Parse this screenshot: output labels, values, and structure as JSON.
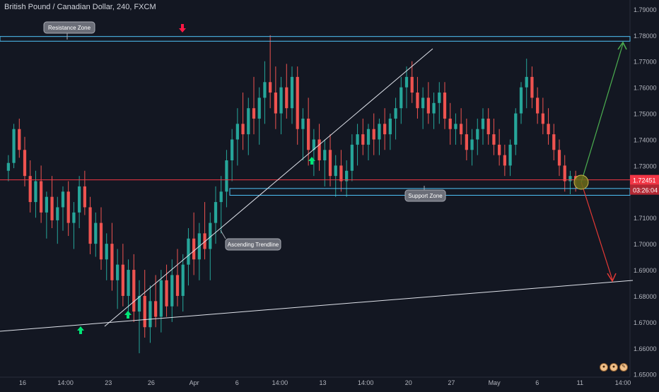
{
  "chart_data": {
    "type": "candlestick",
    "title": "British Pound / Canadian Dollar, 240, FXCM",
    "price_axis": {
      "ylim": [
        1.6445,
        1.7935
      ],
      "ticks": [
        "1.79000",
        "1.78000",
        "1.77000",
        "1.76000",
        "1.75000",
        "1.74000",
        "1.73000",
        "1.72000",
        "1.71000",
        "1.70000",
        "1.69000",
        "1.68000",
        "1.67000",
        "1.66000",
        "1.65000"
      ]
    },
    "time_axis": {
      "ticks": [
        "16",
        "14:00",
        "23",
        "26",
        "Apr",
        "6",
        "14:00",
        "13",
        "14:00",
        "20",
        "27",
        "May",
        "6",
        "11",
        "14:00"
      ]
    },
    "current_price": {
      "label": "1.72451",
      "countdown": "03:26:04",
      "value": 1.72451
    },
    "zones": [
      {
        "name": "Resistance Zone",
        "low": 1.7777,
        "high": 1.7795
      },
      {
        "name": "Support Zone",
        "low": 1.7186,
        "high": 1.7212
      }
    ],
    "annotations": [
      "Resistance Zone",
      "Support Zone",
      "Ascending Trendline"
    ],
    "colors": {
      "background": "#131722",
      "candle_up": "#26a69a",
      "candle_down": "#ef5350",
      "zone": "#4fc3f7",
      "current_price_line": "#f23645",
      "arrow_up": "#00e676",
      "arrow_down": "#ff1744",
      "target_up": "#4caf50",
      "target_down": "#e53935",
      "trendline": "#e0e3eb"
    },
    "path_points": [
      [
        1.728,
        1.734,
        1.724,
        1.731
      ],
      [
        1.731,
        1.746,
        1.729,
        1.744
      ],
      [
        1.744,
        1.748,
        1.733,
        1.736
      ],
      [
        1.736,
        1.741,
        1.722,
        1.726
      ],
      [
        1.726,
        1.732,
        1.712,
        1.716
      ],
      [
        1.716,
        1.728,
        1.71,
        1.724
      ],
      [
        1.724,
        1.73,
        1.708,
        1.712
      ],
      [
        1.712,
        1.72,
        1.702,
        1.718
      ],
      [
        1.718,
        1.726,
        1.706,
        1.709
      ],
      [
        1.709,
        1.718,
        1.7,
        1.714
      ],
      [
        1.714,
        1.722,
        1.705,
        1.72
      ],
      [
        1.72,
        1.724,
        1.703,
        1.708
      ],
      [
        1.708,
        1.716,
        1.698,
        1.712
      ],
      [
        1.712,
        1.726,
        1.706,
        1.722
      ],
      [
        1.722,
        1.728,
        1.711,
        1.714
      ],
      [
        1.714,
        1.718,
        1.696,
        1.7
      ],
      [
        1.7,
        1.712,
        1.695,
        1.708
      ],
      [
        1.708,
        1.714,
        1.69,
        1.694
      ],
      [
        1.694,
        1.704,
        1.686,
        1.7
      ],
      [
        1.7,
        1.708,
        1.682,
        1.686
      ],
      [
        1.686,
        1.698,
        1.675,
        1.692
      ],
      [
        1.692,
        1.7,
        1.676,
        1.68
      ],
      [
        1.68,
        1.694,
        1.674,
        1.69
      ],
      [
        1.69,
        1.696,
        1.67,
        1.674
      ],
      [
        1.674,
        1.686,
        1.658,
        1.68
      ],
      [
        1.68,
        1.69,
        1.664,
        1.668
      ],
      [
        1.668,
        1.684,
        1.662,
        1.678
      ],
      [
        1.678,
        1.688,
        1.668,
        1.672
      ],
      [
        1.672,
        1.69,
        1.666,
        1.686
      ],
      [
        1.686,
        1.692,
        1.672,
        1.676
      ],
      [
        1.676,
        1.694,
        1.67,
        1.688
      ],
      [
        1.688,
        1.698,
        1.676,
        1.68
      ],
      [
        1.68,
        1.696,
        1.674,
        1.692
      ],
      [
        1.692,
        1.706,
        1.684,
        1.702
      ],
      [
        1.702,
        1.712,
        1.688,
        1.694
      ],
      [
        1.694,
        1.708,
        1.686,
        1.704
      ],
      [
        1.704,
        1.716,
        1.694,
        1.698
      ],
      [
        1.698,
        1.712,
        1.686,
        1.708
      ],
      [
        1.708,
        1.722,
        1.7,
        1.716
      ],
      [
        1.716,
        1.726,
        1.704,
        1.72
      ],
      [
        1.72,
        1.736,
        1.714,
        1.732
      ],
      [
        1.732,
        1.744,
        1.724,
        1.74
      ],
      [
        1.74,
        1.752,
        1.73,
        1.746
      ],
      [
        1.746,
        1.758,
        1.736,
        1.742
      ],
      [
        1.742,
        1.756,
        1.734,
        1.752
      ],
      [
        1.752,
        1.764,
        1.742,
        1.748
      ],
      [
        1.748,
        1.76,
        1.738,
        1.756
      ],
      [
        1.756,
        1.77,
        1.746,
        1.762
      ],
      [
        1.762,
        1.78,
        1.752,
        1.758
      ],
      [
        1.758,
        1.768,
        1.744,
        1.75
      ],
      [
        1.75,
        1.764,
        1.742,
        1.76
      ],
      [
        1.76,
        1.769,
        1.748,
        1.752
      ],
      [
        1.752,
        1.768,
        1.746,
        1.764
      ],
      [
        1.764,
        1.768,
        1.738,
        1.744
      ],
      [
        1.744,
        1.752,
        1.732,
        1.748
      ],
      [
        1.748,
        1.756,
        1.73,
        1.736
      ],
      [
        1.736,
        1.744,
        1.726,
        1.74
      ],
      [
        1.74,
        1.746,
        1.728,
        1.732
      ],
      [
        1.732,
        1.74,
        1.722,
        1.736
      ],
      [
        1.736,
        1.742,
        1.722,
        1.726
      ],
      [
        1.726,
        1.734,
        1.718,
        1.73
      ],
      [
        1.73,
        1.736,
        1.72,
        1.724
      ],
      [
        1.724,
        1.732,
        1.718,
        1.728
      ],
      [
        1.728,
        1.742,
        1.724,
        1.738
      ],
      [
        1.738,
        1.746,
        1.73,
        1.742
      ],
      [
        1.742,
        1.748,
        1.734,
        1.738
      ],
      [
        1.738,
        1.746,
        1.732,
        1.744
      ],
      [
        1.744,
        1.75,
        1.734,
        1.74
      ],
      [
        1.74,
        1.748,
        1.734,
        1.746
      ],
      [
        1.746,
        1.752,
        1.736,
        1.742
      ],
      [
        1.742,
        1.75,
        1.736,
        1.748
      ],
      [
        1.748,
        1.756,
        1.74,
        1.752
      ],
      [
        1.752,
        1.764,
        1.746,
        1.76
      ],
      [
        1.76,
        1.768,
        1.752,
        1.764
      ],
      [
        1.764,
        1.77,
        1.754,
        1.758
      ],
      [
        1.758,
        1.764,
        1.748,
        1.752
      ],
      [
        1.752,
        1.76,
        1.744,
        1.756
      ],
      [
        1.756,
        1.762,
        1.746,
        1.75
      ],
      [
        1.75,
        1.758,
        1.744,
        1.754
      ],
      [
        1.754,
        1.762,
        1.746,
        1.758
      ],
      [
        1.758,
        1.762,
        1.744,
        1.748
      ],
      [
        1.748,
        1.754,
        1.738,
        1.744
      ],
      [
        1.744,
        1.75,
        1.738,
        1.746
      ],
      [
        1.746,
        1.752,
        1.738,
        1.742
      ],
      [
        1.742,
        1.748,
        1.732,
        1.736
      ],
      [
        1.736,
        1.744,
        1.73,
        1.74
      ],
      [
        1.74,
        1.748,
        1.734,
        1.744
      ],
      [
        1.744,
        1.752,
        1.738,
        1.748
      ],
      [
        1.748,
        1.752,
        1.738,
        1.742
      ],
      [
        1.742,
        1.748,
        1.734,
        1.738
      ],
      [
        1.738,
        1.744,
        1.73,
        1.734
      ],
      [
        1.734,
        1.738,
        1.726,
        1.73
      ],
      [
        1.73,
        1.74,
        1.726,
        1.738
      ],
      [
        1.738,
        1.752,
        1.734,
        1.75
      ],
      [
        1.75,
        1.762,
        1.746,
        1.76
      ],
      [
        1.76,
        1.771,
        1.752,
        1.764
      ],
      [
        1.764,
        1.768,
        1.752,
        1.756
      ],
      [
        1.756,
        1.76,
        1.746,
        1.75
      ],
      [
        1.75,
        1.756,
        1.742,
        1.746
      ],
      [
        1.746,
        1.752,
        1.738,
        1.742
      ],
      [
        1.742,
        1.746,
        1.732,
        1.736
      ],
      [
        1.736,
        1.74,
        1.726,
        1.73
      ],
      [
        1.73,
        1.734,
        1.72,
        1.724
      ],
      [
        1.724,
        1.728,
        1.719,
        1.726
      ],
      [
        1.726,
        1.728,
        1.72,
        1.7245
      ]
    ]
  },
  "ui": {
    "footer_badges": [
      "●",
      "●",
      "✎"
    ]
  }
}
